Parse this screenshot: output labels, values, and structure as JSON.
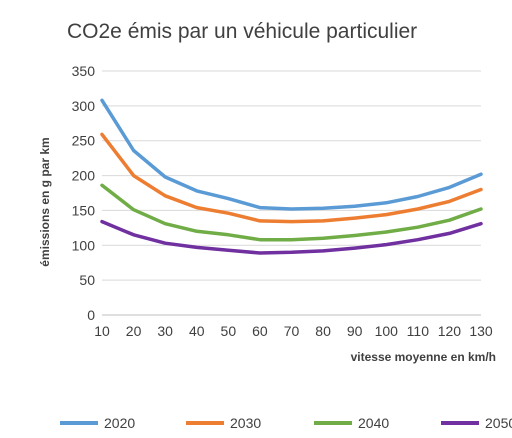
{
  "chart_data": {
    "type": "line",
    "title": "CO2e émis par un véhicule particulier",
    "xlabel": "vitesse moyenne en km/h",
    "ylabel": "émissions en g par km",
    "x": [
      10,
      20,
      30,
      40,
      50,
      60,
      70,
      80,
      90,
      100,
      110,
      120,
      130
    ],
    "xlim": [
      10,
      130
    ],
    "ylim": [
      0,
      350
    ],
    "yticks": [
      0,
      50,
      100,
      150,
      200,
      250,
      300,
      350
    ],
    "grid": true,
    "legend_position": "bottom",
    "series": [
      {
        "name": "2020",
        "color": "#5b9bd5",
        "values": [
          308,
          236,
          198,
          178,
          167,
          154,
          152,
          153,
          156,
          161,
          170,
          183,
          202
        ]
      },
      {
        "name": "2030",
        "color": "#ed7d31",
        "values": [
          259,
          200,
          171,
          154,
          146,
          135,
          134,
          135,
          139,
          144,
          152,
          163,
          180
        ]
      },
      {
        "name": "2040",
        "color": "#70ad47",
        "values": [
          186,
          151,
          131,
          120,
          115,
          108,
          108,
          110,
          114,
          119,
          126,
          136,
          152
        ]
      },
      {
        "name": "2050",
        "color": "#7030a0",
        "values": [
          134,
          115,
          103,
          97,
          93,
          89,
          90,
          92,
          96,
          101,
          108,
          117,
          131
        ]
      }
    ]
  }
}
